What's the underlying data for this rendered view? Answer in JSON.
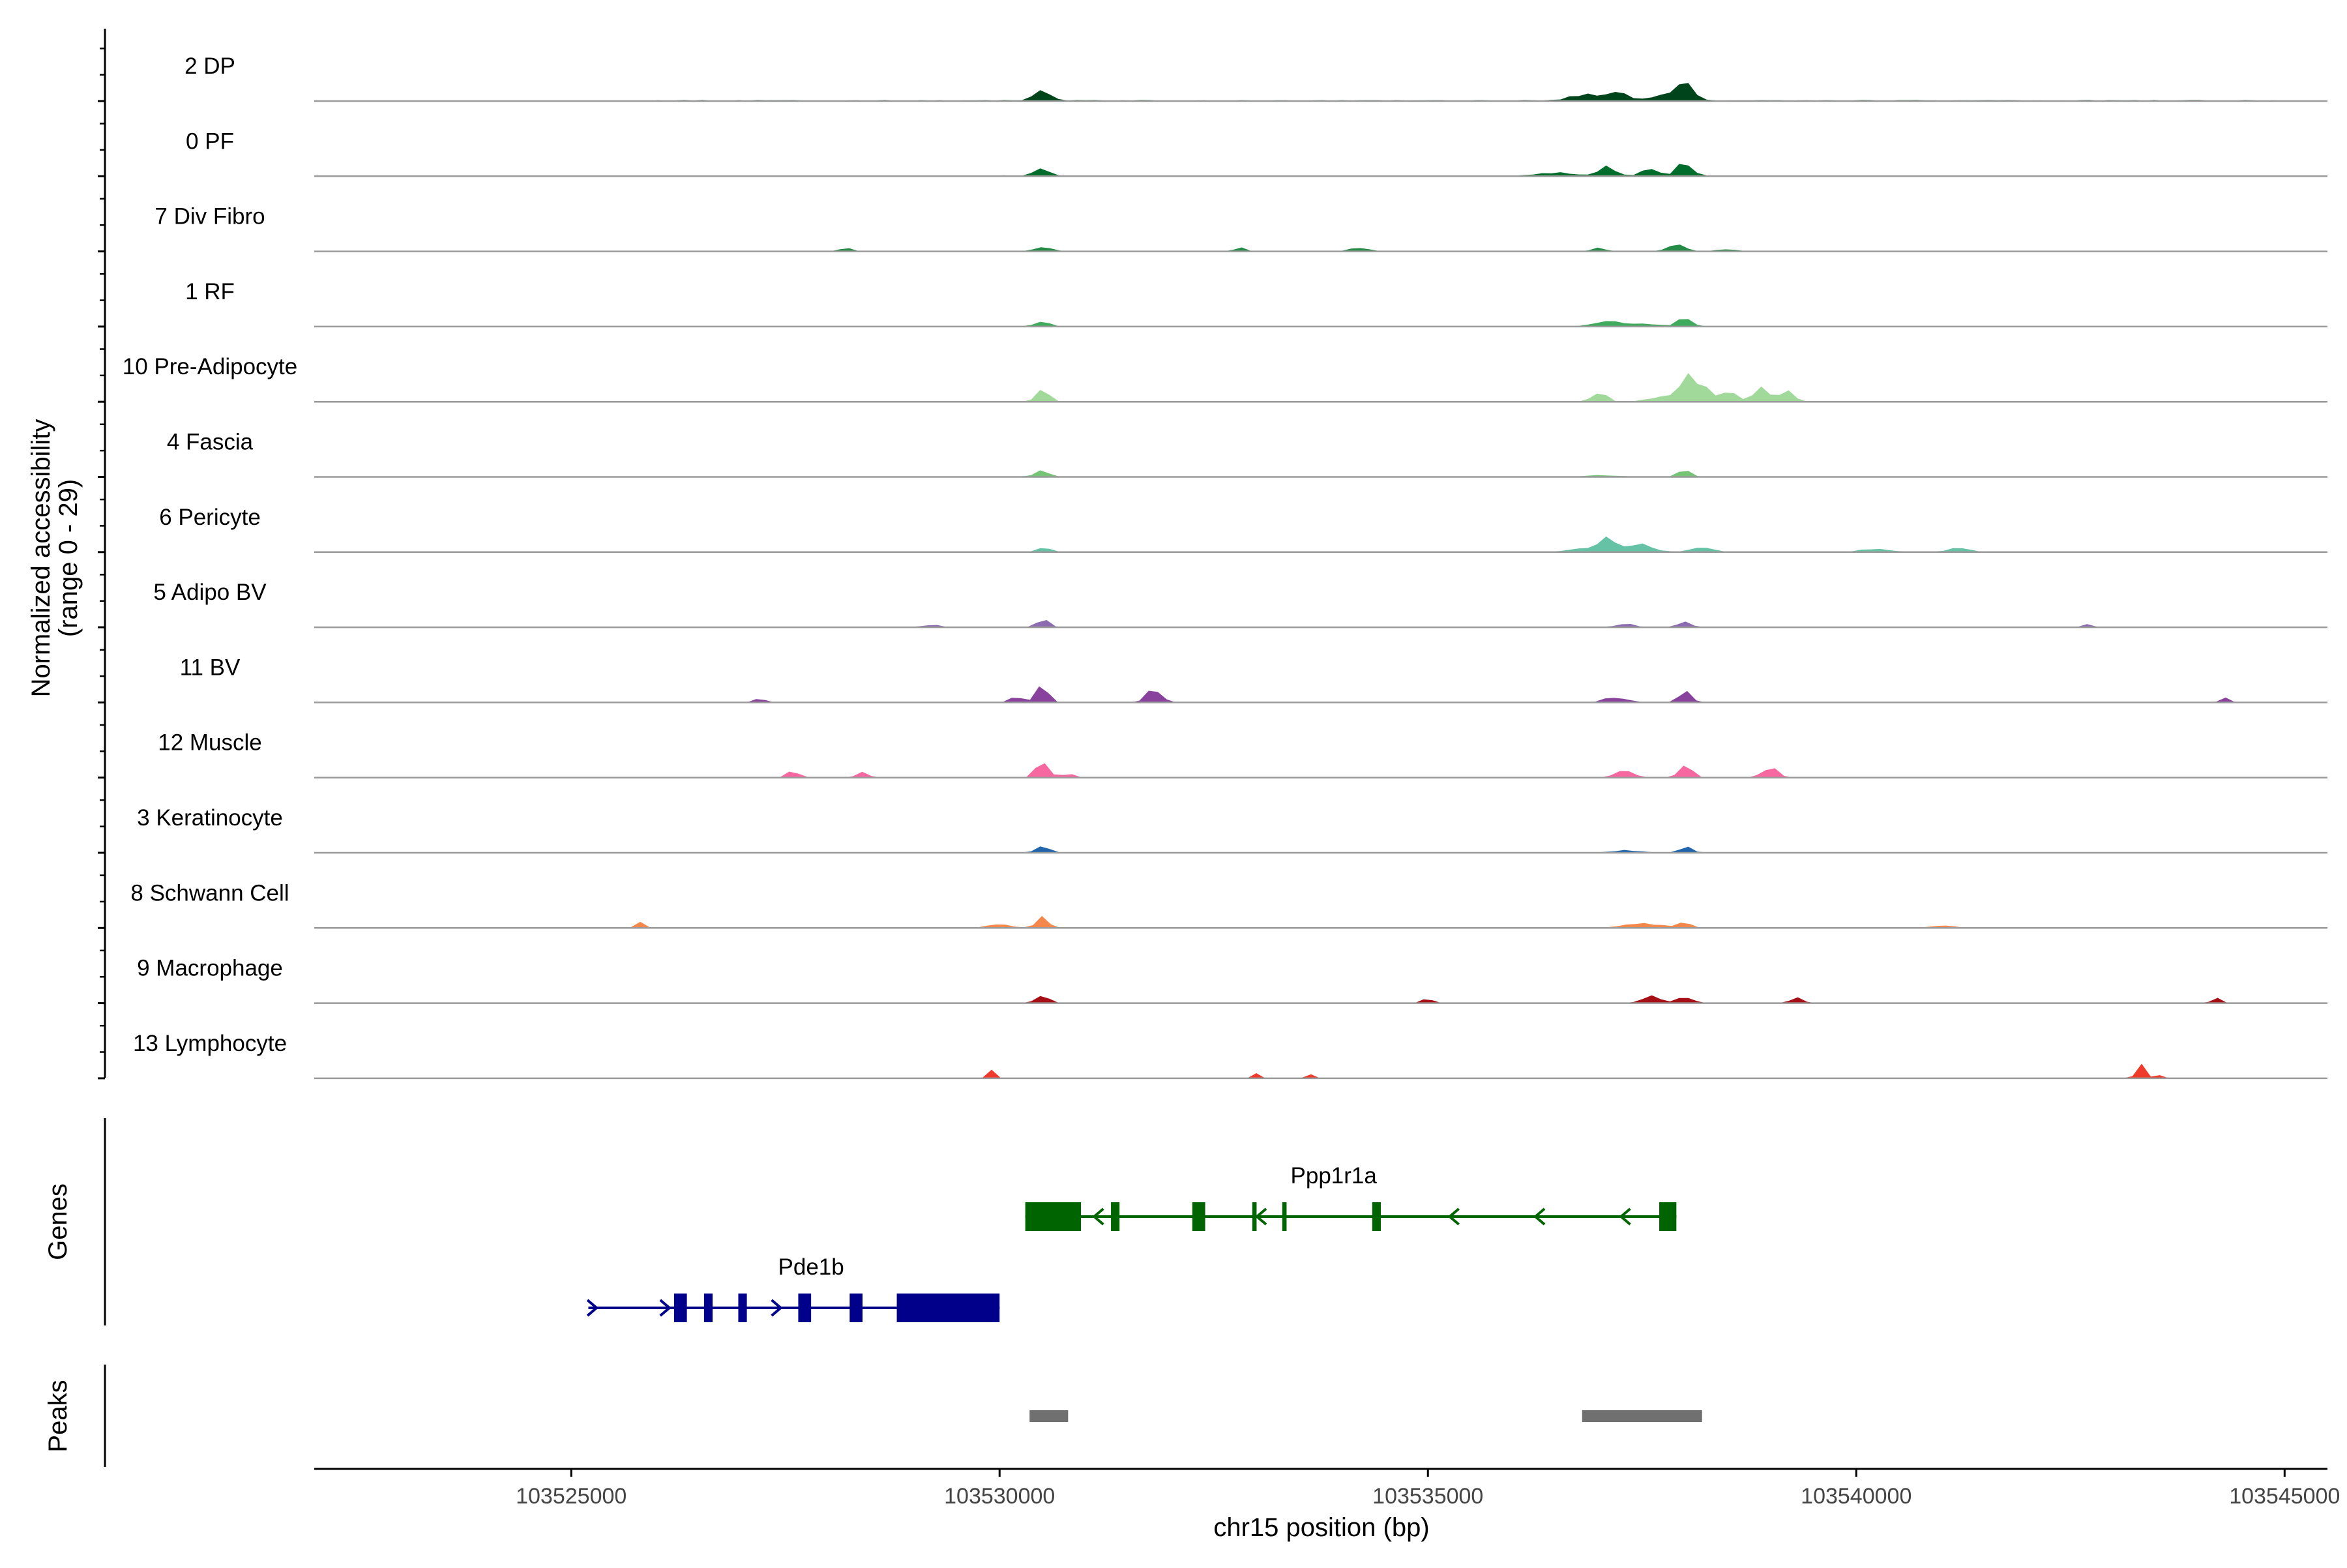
{
  "chart_data": {
    "type": "area",
    "title": "",
    "xlabel": "chr15 position (bp)",
    "ylabel_line1": "Normalized accessibility",
    "ylabel_line2": "(range 0 - 29)",
    "xlim": [
      103522000,
      103545500
    ],
    "x_ticks": [
      103525000,
      103530000,
      103535000,
      103540000,
      103545000
    ],
    "x_tick_labels": [
      "103525000",
      "103530000",
      "103535000",
      "103540000",
      "103545000"
    ],
    "y_range": [
      0,
      29
    ],
    "panel_labels": {
      "genes": "Genes",
      "peaks": "Peaks"
    },
    "tracks": [
      {
        "name": "2 DP",
        "color": "#00441B",
        "baseline": 0.3,
        "range": [
          103526000,
          103545000
        ],
        "peaks": [
          [
            103530500,
            120,
            5.2
          ],
          [
            103537200,
            200,
            3.8
          ],
          [
            103537800,
            200,
            3.2
          ],
          [
            103538000,
            130,
            6.4
          ],
          [
            103536800,
            200,
            2.6
          ]
        ]
      },
      {
        "name": "0 PF",
        "color": "#006D2C",
        "baseline": 0.25,
        "range": [
          103526000,
          103545000
        ],
        "peaks": [
          [
            103530500,
            110,
            4.0
          ],
          [
            103537100,
            120,
            4.5
          ],
          [
            103537600,
            140,
            3.0
          ],
          [
            103538000,
            110,
            6.6
          ],
          [
            103536500,
            300,
            1.2
          ]
        ]
      },
      {
        "name": "7 Div Fibro",
        "color": "#238B45",
        "baseline": 0,
        "range": [
          103527500,
          103542000
        ],
        "peaks": [
          [
            103530500,
            150,
            2.0
          ],
          [
            103532800,
            100,
            1.6
          ],
          [
            103534200,
            150,
            1.8
          ],
          [
            103537000,
            100,
            2.0
          ],
          [
            103537900,
            140,
            2.8
          ],
          [
            103538500,
            150,
            1.2
          ],
          [
            103528200,
            100,
            1.4
          ]
        ]
      },
      {
        "name": "1 RF",
        "color": "#41AB5D",
        "baseline": 0.15,
        "range": [
          103526000,
          103545000
        ],
        "peaks": [
          [
            103530500,
            100,
            2.8
          ],
          [
            103537100,
            200,
            2.4
          ],
          [
            103538000,
            100,
            3.8
          ],
          [
            103537500,
            300,
            1.0
          ]
        ]
      },
      {
        "name": "10 Pre-Adipocyte",
        "color": "#A1D99B",
        "baseline": 0,
        "range": [
          103526000,
          103543000
        ],
        "peaks": [
          [
            103530500,
            100,
            7.5
          ],
          [
            103537000,
            120,
            5.0
          ],
          [
            103538000,
            80,
            12.5
          ],
          [
            103538200,
            100,
            8.0
          ],
          [
            103538900,
            120,
            6.0
          ],
          [
            103538500,
            150,
            4.5
          ],
          [
            103539200,
            120,
            4.2
          ],
          [
            103537800,
            250,
            3.0
          ]
        ]
      },
      {
        "name": "4 Fascia",
        "color": "#74C476",
        "baseline": 0.15,
        "range": [
          103526000,
          103545000
        ],
        "peaks": [
          [
            103530500,
            100,
            2.8
          ],
          [
            103538000,
            100,
            2.8
          ],
          [
            103537000,
            200,
            0.8
          ]
        ]
      },
      {
        "name": "6 Pericyte",
        "color": "#66C2A4",
        "baseline": 0.2,
        "range": [
          103526000,
          103545000
        ],
        "peaks": [
          [
            103530500,
            100,
            2.0
          ],
          [
            103537100,
            150,
            6.0
          ],
          [
            103537500,
            200,
            3.0
          ],
          [
            103538200,
            150,
            2.0
          ],
          [
            103540200,
            200,
            1.2
          ],
          [
            103541200,
            150,
            1.6
          ],
          [
            103536800,
            200,
            1.5
          ]
        ]
      },
      {
        "name": "5 Adipo BV",
        "color": "#8C6BB1",
        "baseline": 0.1,
        "range": [
          103526500,
          103545000
        ],
        "peaks": [
          [
            103530500,
            100,
            3.6
          ],
          [
            103537300,
            150,
            1.4
          ],
          [
            103538000,
            100,
            2.4
          ],
          [
            103529200,
            120,
            1.1
          ],
          [
            103542700,
            80,
            1.2
          ]
        ]
      },
      {
        "name": "11 BV",
        "color": "#88419D",
        "baseline": 0,
        "range": [
          103526200,
          103544500
        ],
        "peaks": [
          [
            103530500,
            100,
            7.0
          ],
          [
            103531800,
            120,
            5.5
          ],
          [
            103538000,
            100,
            4.5
          ],
          [
            103537200,
            200,
            2.2
          ],
          [
            103527200,
            80,
            2.4
          ],
          [
            103544300,
            80,
            1.8
          ],
          [
            103530200,
            100,
            2.6
          ]
        ]
      },
      {
        "name": "12 Muscle",
        "color": "#F768A1",
        "baseline": 0,
        "range": [
          103525200,
          103545000
        ],
        "peaks": [
          [
            103530500,
            100,
            8.5
          ],
          [
            103538000,
            100,
            6.5
          ],
          [
            103539000,
            120,
            5.5
          ],
          [
            103537300,
            150,
            3.5
          ],
          [
            103527600,
            100,
            3.0
          ],
          [
            103528400,
            100,
            2.5
          ],
          [
            103530800,
            100,
            2.0
          ]
        ]
      },
      {
        "name": "3 Keratinocyte",
        "color": "#2166AC",
        "baseline": 0.15,
        "range": [
          103526000,
          103545000
        ],
        "peaks": [
          [
            103530500,
            100,
            2.6
          ],
          [
            103538000,
            100,
            2.4
          ],
          [
            103537300,
            200,
            1.0
          ]
        ]
      },
      {
        "name": "8 Schwann Cell",
        "color": "#F4874B",
        "baseline": 0,
        "range": [
          103525700,
          103543000
        ],
        "peaks": [
          [
            103530500,
            100,
            4.5
          ],
          [
            103530000,
            200,
            1.4
          ],
          [
            103537500,
            300,
            2.0
          ],
          [
            103538000,
            100,
            2.4
          ],
          [
            103525800,
            80,
            2.4
          ],
          [
            103541000,
            200,
            1.0
          ]
        ]
      },
      {
        "name": "9 Macrophage",
        "color": "#A50F15",
        "baseline": 0,
        "range": [
          103526000,
          103545000
        ],
        "peaks": [
          [
            103530500,
            100,
            4.5
          ],
          [
            103538000,
            120,
            3.2
          ],
          [
            103537600,
            150,
            3.0
          ],
          [
            103539300,
            100,
            2.4
          ],
          [
            103535000,
            80,
            2.6
          ],
          [
            103544200,
            80,
            2.2
          ]
        ]
      },
      {
        "name": "13 Lymphocyte",
        "color": "#EF3B2C",
        "baseline": 0,
        "range": [
          103529800,
          103543800
        ],
        "peaks": [
          [
            103529900,
            60,
            5.0
          ],
          [
            103543300,
            50,
            8.0
          ],
          [
            103543500,
            50,
            3.2
          ],
          [
            103533000,
            50,
            2.4
          ],
          [
            103533600,
            50,
            2.4
          ]
        ]
      }
    ],
    "genes": [
      {
        "name": "Pde1b",
        "color": "#00008B",
        "strand": "+",
        "start": 103525200,
        "end": 103530000,
        "exons": [
          [
            103526200,
            103526350
          ],
          [
            103526550,
            103526650
          ],
          [
            103526950,
            103527050
          ],
          [
            103527650,
            103527800
          ],
          [
            103528250,
            103528400
          ],
          [
            103528800,
            103530000
          ]
        ],
        "arrows": [
          103525250,
          103526100,
          103527400
        ]
      },
      {
        "name": "Ppp1r1a",
        "color": "#006400",
        "strand": "-",
        "start": 103530300,
        "end": 103537900,
        "exons": [
          [
            103530300,
            103530950
          ],
          [
            103531300,
            103531400
          ],
          [
            103532250,
            103532400
          ],
          [
            103532950,
            103533000
          ],
          [
            103533300,
            103533350
          ],
          [
            103534350,
            103534450
          ],
          [
            103537700,
            103537900
          ]
        ],
        "arrows": [
          103531150,
          103533050,
          103535300,
          103536300,
          103537300
        ]
      }
    ],
    "peaks": [
      {
        "start": 103530350,
        "end": 103530800,
        "color": "#707070"
      },
      {
        "start": 103536800,
        "end": 103538200,
        "color": "#707070"
      }
    ]
  }
}
